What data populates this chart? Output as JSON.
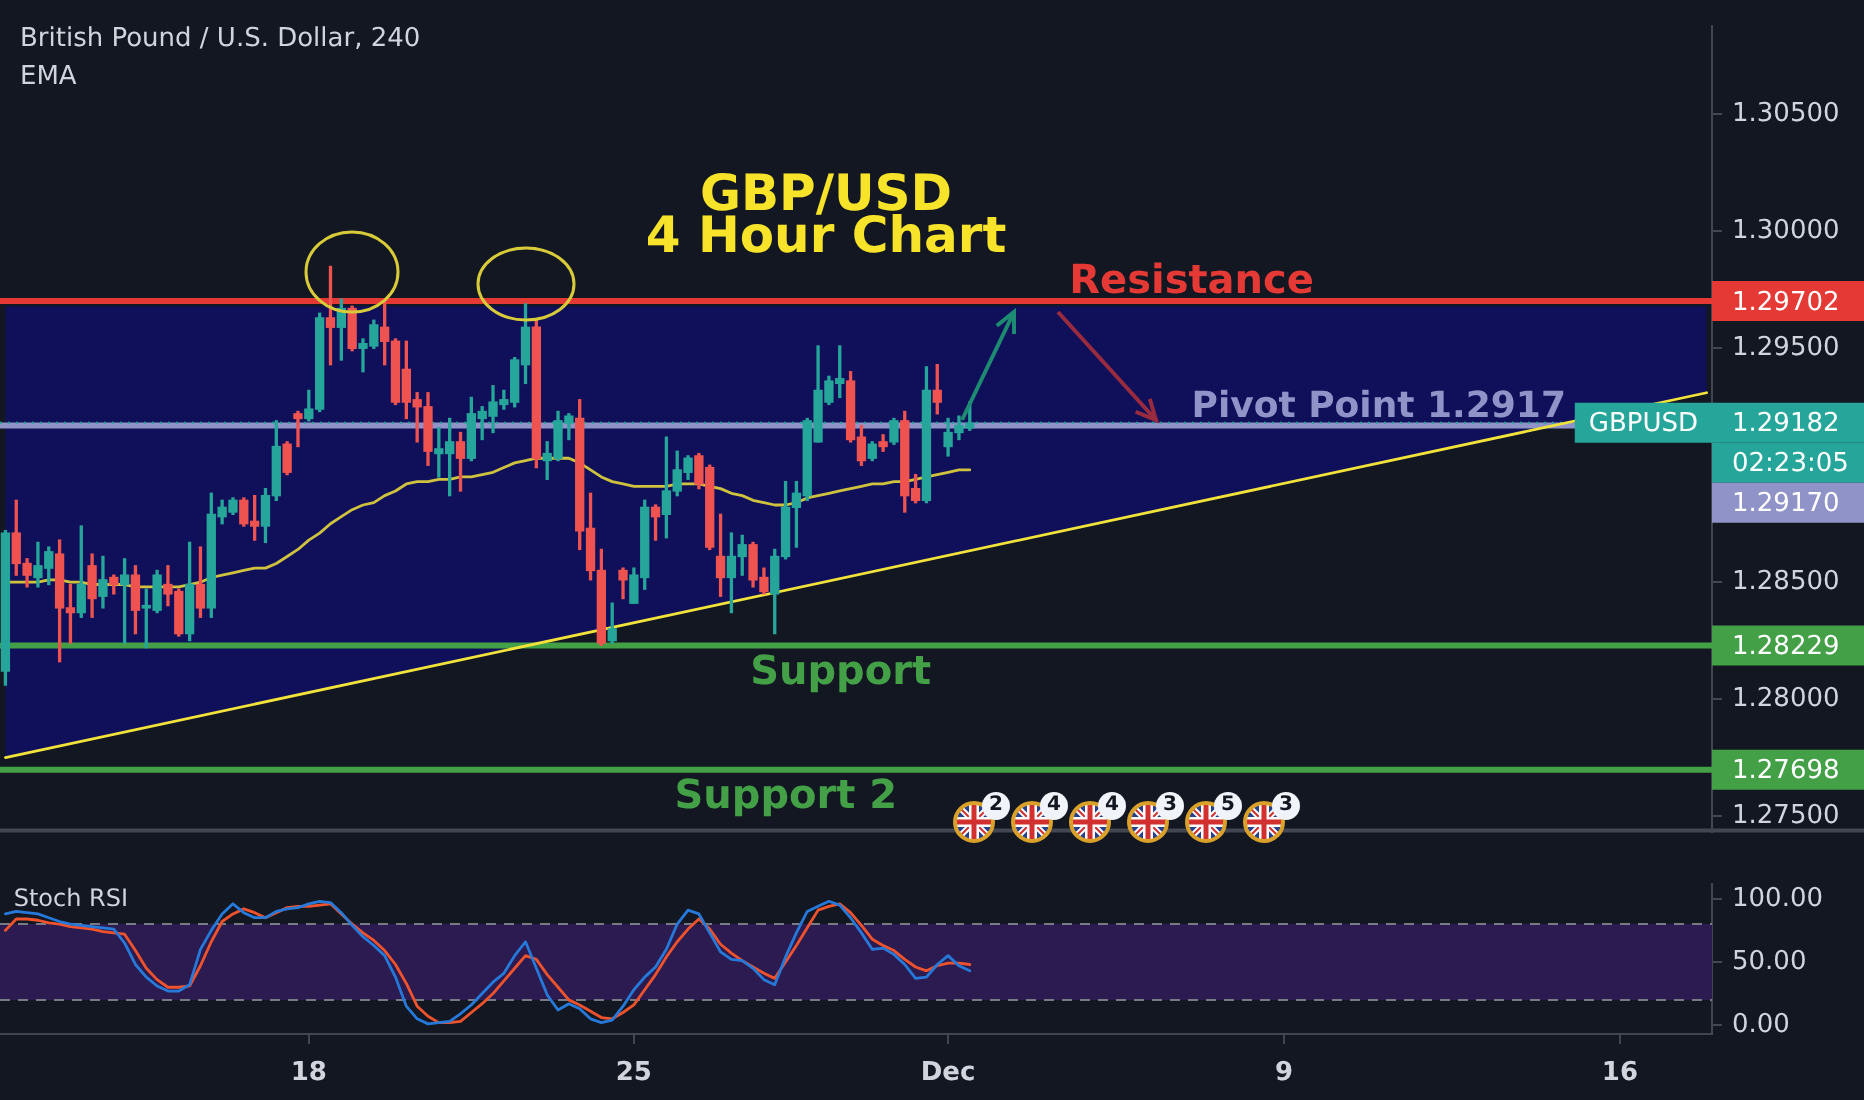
{
  "chart_data": [
    {
      "type": "candlestick",
      "title": "GBP/USD",
      "subtitle": "4 Hour Chart",
      "categories": [
        null,
        null,
        null,
        null,
        null,
        null,
        null,
        null,
        null,
        null,
        null,
        null,
        null,
        null,
        null,
        null,
        null,
        null,
        null,
        null,
        null,
        null,
        null,
        null,
        null,
        null,
        null,
        null,
        null,
        null,
        null,
        null,
        null,
        null,
        null,
        null,
        null,
        null,
        null,
        null,
        null,
        null,
        null,
        null,
        null,
        null,
        null,
        null,
        null,
        null,
        null,
        null,
        null,
        null,
        null,
        null,
        null,
        null,
        null,
        null,
        null,
        null,
        null,
        null,
        null,
        null,
        null,
        null,
        null,
        null,
        null,
        null,
        null,
        null,
        null,
        null,
        null,
        null,
        null,
        null,
        null,
        null,
        null,
        null,
        null,
        null,
        null,
        null,
        null,
        null,
        null,
        null,
        null,
        null,
        null,
        null,
        null,
        null,
        null,
        null,
        null,
        null,
        null,
        null,
        null,
        null,
        null,
        null,
        null,
        null,
        null,
        null,
        null,
        null,
        null,
        null,
        null,
        null,
        null,
        null,
        null,
        null,
        null,
        null,
        null,
        null,
        null,
        null,
        null,
        null,
        null,
        null,
        null,
        null,
        null,
        null,
        null,
        null,
        null,
        null,
        null,
        null,
        null,
        null,
        null,
        null,
        null,
        null,
        null,
        null,
        null,
        null,
        null,
        null,
        null,
        null,
        null,
        null
      ],
      "ohlc": [
        [
          1.2812,
          1.2872,
          1.2806,
          1.2871
        ],
        [
          1.2871,
          1.2885,
          1.2853,
          1.2858
        ],
        [
          1.2858,
          1.286,
          1.2848,
          1.2853
        ],
        [
          1.2852,
          1.2867,
          1.2848,
          1.2857
        ],
        [
          1.2856,
          1.2865,
          1.2849,
          1.2863
        ],
        [
          1.2862,
          1.2868,
          1.2816,
          1.2839
        ],
        [
          1.2839,
          1.2849,
          1.2824,
          1.2837
        ],
        [
          1.2837,
          1.2874,
          1.2835,
          1.2849
        ],
        [
          1.2857,
          1.2862,
          1.2835,
          1.2843
        ],
        [
          1.2844,
          1.2861,
          1.2839,
          1.2851
        ],
        [
          1.2852,
          1.2853,
          1.2845,
          1.2849
        ],
        [
          1.2849,
          1.286,
          1.2824,
          1.2853
        ],
        [
          1.2853,
          1.2857,
          1.2828,
          1.2838
        ],
        [
          1.2839,
          1.2847,
          1.2822,
          1.284
        ],
        [
          1.2838,
          1.2855,
          1.2837,
          1.2853
        ],
        [
          1.2849,
          1.2857,
          1.284,
          1.2845
        ],
        [
          1.2846,
          1.2847,
          1.2827,
          1.2828
        ],
        [
          1.2828,
          1.2867,
          1.2825,
          1.2849
        ],
        [
          1.2849,
          1.2865,
          1.2835,
          1.2839
        ],
        [
          1.2839,
          1.2888,
          1.2835,
          1.2879
        ],
        [
          1.2878,
          1.2885,
          1.2875,
          1.2882
        ],
        [
          1.288,
          1.2886,
          1.2879,
          1.2885
        ],
        [
          1.2885,
          1.2886,
          1.2874,
          1.2875
        ],
        [
          1.2876,
          1.2887,
          1.2868,
          1.2874
        ],
        [
          1.2874,
          1.289,
          1.2867,
          1.2887
        ],
        [
          1.2887,
          1.2919,
          1.2885,
          1.2908
        ],
        [
          1.2909,
          1.291,
          1.2896,
          1.2897
        ],
        [
          1.2922,
          1.2923,
          1.2908,
          1.292
        ],
        [
          1.292,
          1.2932,
          1.2919,
          1.2924
        ],
        [
          1.2924,
          1.2965,
          1.2923,
          1.2963
        ],
        [
          1.2963,
          1.2985,
          1.2943,
          1.2959
        ],
        [
          1.2959,
          1.2971,
          1.2945,
          1.2967
        ],
        [
          1.2967,
          1.2968,
          1.2949,
          1.295
        ],
        [
          1.295,
          1.2954,
          1.294,
          1.2952
        ],
        [
          1.2951,
          1.2962,
          1.295,
          1.296
        ],
        [
          1.2959,
          1.297,
          1.2943,
          1.2953
        ],
        [
          1.2953,
          1.2954,
          1.2926,
          1.2927
        ],
        [
          1.2941,
          1.2953,
          1.292,
          1.2927
        ],
        [
          1.2928,
          1.2931,
          1.291,
          1.2925
        ],
        [
          1.2925,
          1.2931,
          1.29,
          1.2906
        ],
        [
          1.2905,
          1.2916,
          1.2895,
          1.2907
        ],
        [
          1.2905,
          1.292,
          1.2887,
          1.291
        ],
        [
          1.291,
          1.2914,
          1.2889,
          1.2903
        ],
        [
          1.2903,
          1.2929,
          1.2902,
          1.2922
        ],
        [
          1.292,
          1.2925,
          1.2911,
          1.2923
        ],
        [
          1.2921,
          1.2934,
          1.2914,
          1.2927
        ],
        [
          1.2926,
          1.2932,
          1.2924,
          1.2928
        ],
        [
          1.2927,
          1.2946,
          1.2925,
          1.2945
        ],
        [
          1.2943,
          1.2969,
          1.2935,
          1.2959
        ],
        [
          1.2959,
          1.2962,
          1.2899,
          1.2903
        ],
        [
          1.2902,
          1.291,
          1.2894,
          1.2905
        ],
        [
          1.2903,
          1.2923,
          1.2902,
          1.2919
        ],
        [
          1.2918,
          1.2922,
          1.2911,
          1.2921
        ],
        [
          1.292,
          1.2928,
          1.2864,
          1.2872
        ],
        [
          1.2873,
          1.2888,
          1.2851,
          1.2855
        ],
        [
          1.2855,
          1.2864,
          1.2823,
          1.2824
        ],
        [
          1.2825,
          1.2841,
          1.2824,
          1.283
        ],
        [
          1.2855,
          1.2856,
          1.2843,
          1.2851
        ],
        [
          1.2841,
          1.2856,
          1.2841,
          1.2853
        ],
        [
          1.2852,
          1.2885,
          1.2847,
          1.2882
        ],
        [
          1.2882,
          1.2883,
          1.2868,
          1.2878
        ],
        [
          1.2879,
          1.2912,
          1.2869,
          1.2889
        ],
        [
          1.2889,
          1.2906,
          1.2887,
          1.2898
        ],
        [
          1.2897,
          1.2904,
          1.2894,
          1.2903
        ],
        [
          1.2904,
          1.2905,
          1.289,
          1.2892
        ],
        [
          1.2899,
          1.29,
          1.2864,
          1.2865
        ],
        [
          1.2861,
          1.2879,
          1.2844,
          1.2852
        ],
        [
          1.2852,
          1.2871,
          1.2837,
          1.2861
        ],
        [
          1.2861,
          1.287,
          1.2853,
          1.2866
        ],
        [
          1.2866,
          1.2867,
          1.2848,
          1.2851
        ],
        [
          1.2852,
          1.2856,
          1.2845,
          1.2846
        ],
        [
          1.2845,
          1.2864,
          1.2828,
          1.2861
        ],
        [
          1.2861,
          1.2893,
          1.286,
          1.2882
        ],
        [
          1.2882,
          1.2893,
          1.2865,
          1.2888
        ],
        [
          1.2887,
          1.292,
          1.2885,
          1.2919
        ],
        [
          1.291,
          1.2951,
          1.291,
          1.2932
        ],
        [
          1.2927,
          1.2938,
          1.2926,
          1.2936
        ],
        [
          1.2935,
          1.2951,
          1.2929,
          1.2937
        ],
        [
          1.2936,
          1.294,
          1.291,
          1.2911
        ],
        [
          1.2912,
          1.2917,
          1.29,
          1.2902
        ],
        [
          1.2903,
          1.291,
          1.2902,
          1.2909
        ],
        [
          1.291,
          1.2913,
          1.2906,
          1.2908
        ],
        [
          1.291,
          1.292,
          1.2909,
          1.2919
        ],
        [
          1.2919,
          1.2923,
          1.288,
          1.2887
        ],
        [
          1.289,
          1.2896,
          1.2884,
          1.2885
        ],
        [
          1.2885,
          1.2942,
          1.2884,
          1.2932
        ],
        [
          1.2932,
          1.2943,
          1.2922,
          1.2927
        ],
        [
          1.2908,
          1.292,
          1.2904,
          1.2914
        ],
        [
          1.2914,
          1.2921,
          1.2911,
          1.2917
        ],
        [
          1.2916,
          1.2927,
          1.2915,
          1.2918
        ],
        null,
        null,
        null,
        null,
        null,
        null,
        null,
        null,
        null,
        null,
        null,
        null,
        null,
        null,
        null,
        null,
        null,
        null,
        null,
        null,
        null,
        null,
        null,
        null,
        null,
        null,
        null,
        null,
        null,
        null,
        null,
        null,
        null,
        null,
        null,
        null,
        null,
        null,
        null,
        null,
        null,
        null,
        null,
        null,
        null,
        null,
        null,
        null,
        null,
        null,
        null,
        null,
        null,
        null,
        null,
        null,
        null,
        null,
        null,
        null,
        null,
        null,
        null,
        null,
        null,
        null,
        null,
        null
      ],
      "colors": [
        "#26a69a",
        "#ef5350",
        "#ef5350",
        "#26a69a",
        "#26a69a",
        "#ef5350",
        "#ef5350",
        "#26a69a",
        "#ef5350",
        "#26a69a",
        "#ef5350",
        "#26a69a",
        "#ef5350",
        "#26a69a",
        "#26a69a",
        "#ef5350",
        "#ef5350",
        "#26a69a",
        "#ef5350",
        "#26a69a",
        "#26a69a",
        "#26a69a",
        "#ef5350",
        "#ef5350",
        "#26a69a",
        "#26a69a",
        "#ef5350",
        "#ef5350",
        "#26a69a",
        "#26a69a",
        "#ef5350",
        "#26a69a",
        "#ef5350",
        "#26a69a",
        "#26a69a",
        "#ef5350",
        "#ef5350",
        "#ef5350",
        "#ef5350",
        "#ef5350",
        "#26a69a",
        "#26a69a",
        "#ef5350",
        "#26a69a",
        "#26a69a",
        "#26a69a",
        "#26a69a",
        "#26a69a",
        "#26a69a",
        "#ef5350",
        "#26a69a",
        "#26a69a",
        "#26a69a",
        "#ef5350",
        "#ef5350",
        "#ef5350",
        "#26a69a",
        "#ef5350",
        "#26a69a",
        "#26a69a",
        "#ef5350",
        "#26a69a",
        "#26a69a",
        "#26a69a",
        "#ef5350",
        "#ef5350",
        "#ef5350",
        "#26a69a",
        "#26a69a",
        "#ef5350",
        "#ef5350",
        "#26a69a",
        "#26a69a",
        "#26a69a",
        "#26a69a",
        "#26a69a",
        "#26a69a",
        "#26a69a",
        "#ef5350",
        "#ef5350",
        "#26a69a",
        "#ef5350",
        "#26a69a",
        "#ef5350",
        "#ef5350",
        "#26a69a",
        "#ef5350",
        "#26a69a",
        "#26a69a",
        "#26a69a",
        null,
        null,
        null,
        null,
        null,
        null,
        null,
        null,
        null,
        null,
        null,
        null,
        null,
        null,
        null,
        null,
        null,
        null,
        null,
        null,
        null,
        null,
        null,
        null,
        null,
        null,
        null,
        null,
        null,
        null,
        null,
        null,
        null,
        null,
        null,
        null,
        null,
        null,
        null,
        null,
        null,
        null,
        null,
        null,
        null,
        null,
        null,
        null,
        null,
        null,
        null,
        null,
        null,
        null,
        null,
        null,
        null,
        null,
        null,
        null,
        null,
        null,
        null,
        null,
        null,
        null,
        null,
        null
      ],
      "series": [
        {
          "type": "line",
          "color": "#cfc23f",
          "values": [
            1.285,
            1.285,
            1.285,
            1.285,
            1.2851,
            1.2851,
            1.285,
            1.285,
            1.2849,
            1.2849,
            1.2849,
            1.2849,
            1.2848,
            1.2848,
            1.2848,
            1.2848,
            1.2848,
            1.2849,
            1.285,
            1.2852,
            1.2853,
            1.2854,
            1.2855,
            1.2856,
            1.2856,
            1.2858,
            1.2861,
            1.2864,
            1.2868,
            1.2871,
            1.2875,
            1.2878,
            1.2881,
            1.2883,
            1.2884,
            1.2887,
            1.2889,
            1.2892,
            1.2893,
            1.2893,
            1.2894,
            1.2894,
            1.2895,
            1.2895,
            1.2896,
            1.2897,
            1.2899,
            1.2901,
            1.2902,
            1.2903,
            1.2903,
            1.2903,
            1.2903,
            1.2901,
            1.2898,
            1.2895,
            1.2893,
            1.2892,
            1.2891,
            1.2891,
            1.2891,
            1.2891,
            1.2892,
            1.2892,
            1.2892,
            1.2891,
            1.289,
            1.2888,
            1.2887,
            1.2885,
            1.2884,
            1.2883,
            1.2883,
            1.2884,
            1.2886,
            1.2887,
            1.2888,
            1.2889,
            1.289,
            1.2891,
            1.2892,
            1.2892,
            1.2893,
            1.2893,
            1.2894,
            1.2895,
            1.2896,
            1.2897,
            1.2898,
            1.2898,
            null,
            null,
            null,
            null,
            null,
            null,
            null,
            null,
            null,
            null,
            null,
            null,
            null,
            null,
            null,
            null,
            null,
            null,
            null,
            null,
            null,
            null,
            null,
            null,
            null,
            null,
            null,
            null,
            null,
            null,
            null,
            null,
            null,
            null,
            null,
            null,
            null,
            null,
            null,
            null,
            null,
            null,
            null,
            null,
            null,
            null,
            null,
            null,
            null,
            null,
            null,
            null,
            null,
            null,
            null,
            null,
            null,
            null,
            null,
            null,
            null,
            null,
            null,
            null,
            null,
            null,
            null,
            null
          ]
        },
        {
          "type": "line",
          "color": "#f2e33b",
          "values": [
            1.2775,
            null,
            null,
            null,
            null,
            null,
            null,
            null,
            null,
            null,
            null,
            null,
            null,
            null,
            null,
            null,
            null,
            null,
            null,
            null,
            null,
            null,
            null,
            null,
            null,
            null,
            null,
            null,
            null,
            null,
            null,
            null,
            null,
            null,
            null,
            null,
            null,
            null,
            null,
            null,
            null,
            null,
            null,
            null,
            null,
            null,
            null,
            null,
            null,
            null,
            null,
            null,
            null,
            null,
            null,
            null,
            null,
            null,
            null,
            null,
            null,
            null,
            null,
            null,
            null,
            null,
            null,
            null,
            null,
            null,
            null,
            null,
            null,
            null,
            null,
            null,
            null,
            null,
            null,
            null,
            null,
            null,
            null,
            null,
            null,
            null,
            null,
            null,
            null,
            null,
            null,
            null,
            null,
            null,
            null,
            null,
            null,
            null,
            null,
            null,
            null,
            null,
            null,
            null,
            null,
            null,
            null,
            null,
            null,
            null,
            null,
            null,
            null,
            null,
            null,
            null,
            null,
            null,
            null,
            null,
            null,
            null,
            null,
            null,
            null,
            null,
            null,
            null,
            null,
            null,
            null,
            null,
            null,
            null,
            null,
            null,
            null,
            null,
            null,
            null,
            null,
            null,
            null,
            null,
            null,
            null,
            null,
            null,
            null,
            null,
            null,
            null,
            null,
            null,
            null,
            null,
            null,
            1.2931
          ],
          "lower": [
            1.2775,
            null,
            null,
            null,
            null,
            null,
            null,
            null,
            null,
            null,
            null,
            null,
            null,
            null,
            null,
            null,
            null,
            null,
            null,
            null,
            null,
            null,
            null,
            null,
            null,
            null,
            null,
            null,
            null,
            null,
            null,
            null,
            null,
            null,
            null,
            null,
            null,
            null,
            null,
            null,
            null,
            null,
            null,
            null,
            null,
            null,
            null,
            null,
            null,
            null,
            null,
            null,
            null,
            null,
            null,
            null,
            null,
            null,
            null,
            null,
            null,
            null,
            null,
            null,
            null,
            null,
            null,
            null,
            null,
            null,
            null,
            null,
            null,
            null,
            null,
            null,
            null,
            null,
            null,
            null,
            null,
            null,
            null,
            null,
            null,
            null,
            null,
            null,
            null,
            null,
            null,
            null,
            null,
            null,
            null,
            null,
            null,
            null,
            null,
            null,
            null,
            null,
            null,
            null,
            null,
            null,
            null,
            null,
            null,
            null,
            null,
            null,
            null,
            null,
            null,
            null,
            null,
            null,
            null,
            null,
            null,
            null,
            null,
            null,
            null,
            null,
            null,
            null,
            null,
            null,
            null,
            null,
            null,
            null,
            null,
            null,
            null,
            null,
            null,
            null,
            null,
            null,
            null,
            null,
            null,
            null,
            null,
            null,
            null,
            null,
            null,
            null,
            null,
            null,
            null,
            null,
            null,
            1.2931
          ],
          "upper": [
            1.2968,
            null,
            null,
            null,
            null,
            null,
            null,
            null,
            null,
            null,
            null,
            null,
            null,
            null,
            null,
            null,
            null,
            null,
            null,
            null,
            null,
            null,
            null,
            null,
            null,
            null,
            null,
            null,
            null,
            null,
            null,
            null,
            null,
            null,
            null,
            null,
            null,
            null,
            null,
            null,
            null,
            null,
            null,
            null,
            null,
            null,
            null,
            null,
            null,
            null,
            null,
            null,
            null,
            null,
            null,
            null,
            null,
            null,
            null,
            null,
            null,
            null,
            null,
            null,
            null,
            null,
            null,
            null,
            null,
            null,
            null,
            null,
            null,
            null,
            null,
            null,
            null,
            null,
            null,
            null,
            null,
            null,
            null,
            null,
            null,
            null,
            null,
            null,
            null,
            null,
            null,
            null,
            null,
            null,
            null,
            null,
            null,
            null,
            null,
            null,
            null,
            null,
            null,
            null,
            null,
            null,
            null,
            null,
            null,
            null,
            null,
            null,
            null,
            null,
            null,
            null,
            null,
            null,
            null,
            null,
            null,
            null,
            null,
            null,
            null,
            null,
            null,
            null,
            null,
            null,
            null,
            null,
            null,
            null,
            null,
            null,
            null,
            null,
            null,
            null,
            null,
            null,
            null,
            null,
            null,
            null,
            null,
            null,
            null,
            null,
            null,
            null,
            null,
            null,
            null,
            null,
            null,
            1.2968
          ]
        }
      ],
      "ylim": [
        1.2743,
        1.3088
      ],
      "yticks": [
        {
          "value": 1.275,
          "label": "1.27500"
        },
        {
          "value": 1.27698,
          "label": "1.27698"
        },
        {
          "value": 1.28,
          "label": "1.28000"
        },
        {
          "value": 1.28229,
          "label": "1.28229"
        },
        {
          "value": 1.285,
          "label": "1.28500"
        },
        {
          "value": 1.29182,
          "label": "1.29182"
        },
        {
          "value": 1.295,
          "label": "1.29500"
        },
        {
          "value": 1.29702,
          "label": "1.29702"
        },
        {
          "value": 1.3,
          "label": "1.30000"
        },
        {
          "value": 1.305,
          "label": "1.30500"
        }
      ],
      "tick_labels": "y",
      "ref_lines": [
        {
          "axis": "y",
          "value": 1.29702,
          "label": "Resistance",
          "color": "#e53935"
        },
        {
          "axis": "y",
          "value": 1.29182,
          "label": "GBPUSD",
          "color": "#26a69a",
          "line_style": "dotted"
        },
        {
          "axis": "y",
          "value": 1.2917,
          "label": "Pivot Point 1.2917",
          "color": "#8f93c8"
        },
        {
          "axis": "y",
          "value": 1.28229,
          "label": "Support",
          "color": "#43a047"
        },
        {
          "axis": "y",
          "value": 1.27698,
          "label": "Support 2",
          "color": "#43a047"
        }
      ],
      "annotations": [
        "British Pound / U.S. Dollar, 240",
        "EMA",
        "02:23:05",
        "1.29170",
        "2",
        "4",
        "4",
        "3",
        "5",
        "3"
      ]
    },
    {
      "type": "line",
      "title": "Stoch RSI",
      "categories": [
        null,
        null,
        null,
        null,
        null,
        null,
        null,
        null,
        null,
        null,
        null,
        null,
        null,
        null,
        null,
        null,
        null,
        null,
        null,
        null,
        null,
        null,
        null,
        null,
        null,
        null,
        null,
        null,
        "18",
        null,
        null,
        null,
        null,
        null,
        null,
        null,
        null,
        null,
        null,
        null,
        null,
        null,
        null,
        null,
        null,
        null,
        null,
        null,
        null,
        null,
        null,
        null,
        null,
        null,
        null,
        null,
        null,
        null,
        "25",
        null,
        null,
        null,
        null,
        null,
        null,
        null,
        null,
        null,
        null,
        null,
        null,
        null,
        null,
        null,
        null,
        null,
        null,
        null,
        null,
        null,
        null,
        null,
        null,
        null,
        null,
        null,
        null,
        "Dec",
        null,
        null,
        null,
        null,
        null,
        null,
        null,
        null,
        null,
        null,
        null,
        null,
        null,
        null,
        null,
        null,
        null,
        null,
        null,
        null,
        null,
        null,
        null,
        null,
        null,
        null,
        null,
        null,
        null,
        null,
        "9",
        null,
        null,
        null,
        null,
        null,
        null,
        null,
        null,
        null,
        null,
        null,
        null,
        null,
        null,
        null,
        null,
        null,
        null,
        null,
        null,
        null,
        null,
        null,
        null,
        null,
        null,
        null,
        null,
        null,
        null,
        "16",
        null,
        null,
        null,
        null,
        null,
        null,
        null,
        null
      ],
      "series": [
        {
          "color": "#2679d8",
          "values": [
            88,
            90,
            89,
            88,
            85,
            82,
            80,
            79,
            78,
            77,
            76,
            65,
            48,
            38,
            31,
            27,
            27,
            32,
            60,
            75,
            88,
            96,
            89,
            85,
            85,
            90,
            92,
            93,
            96,
            98,
            97,
            89,
            79,
            70,
            63,
            55,
            38,
            15,
            5,
            1,
            2,
            3,
            9,
            16,
            25,
            34,
            41,
            55,
            66,
            45,
            24,
            12,
            17,
            13,
            5,
            2,
            4,
            15,
            28,
            38,
            46,
            60,
            80,
            91,
            88,
            73,
            58,
            52,
            51,
            45,
            36,
            32,
            54,
            73,
            90,
            94,
            98,
            95,
            85,
            73,
            60,
            61,
            56,
            48,
            37,
            38,
            48,
            55,
            47,
            43,
            null,
            null,
            null,
            null,
            null,
            null,
            null,
            null,
            null,
            null,
            null,
            null,
            null,
            null,
            null,
            null,
            null,
            null,
            null,
            null,
            null,
            null,
            null,
            null,
            null,
            null,
            null,
            null,
            null,
            null,
            null,
            null,
            null,
            null,
            null,
            null,
            null,
            null,
            null,
            null,
            null,
            null,
            null,
            null,
            null,
            null,
            null,
            null,
            null,
            null,
            null,
            null,
            null,
            null,
            null,
            null,
            null,
            null,
            null,
            null,
            null,
            null,
            null,
            null,
            null,
            null,
            null,
            null
          ]
        },
        {
          "color": "#f0532c",
          "values": [
            75,
            84,
            84,
            83,
            81,
            80,
            78,
            77,
            76,
            74,
            73,
            72,
            59,
            45,
            36,
            30,
            30,
            31,
            47,
            66,
            82,
            88,
            92,
            89,
            85,
            89,
            93,
            94,
            94,
            95,
            96,
            88,
            80,
            73,
            67,
            59,
            48,
            33,
            15,
            7,
            2,
            2,
            3,
            10,
            17,
            25,
            35,
            45,
            55,
            52,
            40,
            30,
            20,
            16,
            11,
            6,
            5,
            10,
            16,
            28,
            40,
            54,
            66,
            76,
            84,
            76,
            64,
            57,
            51,
            46,
            41,
            37,
            50,
            63,
            77,
            91,
            94,
            96,
            89,
            79,
            68,
            63,
            59,
            52,
            46,
            43,
            47,
            49,
            49,
            48,
            null,
            null,
            null,
            null,
            null,
            null,
            null,
            null,
            null,
            null,
            null,
            null,
            null,
            null,
            null,
            null,
            null,
            null,
            null,
            null,
            null,
            null,
            null,
            null,
            null,
            null,
            null,
            null,
            null,
            null,
            null,
            null,
            null,
            null,
            null,
            null,
            null,
            null,
            null,
            null,
            null,
            null,
            null,
            null,
            null,
            null,
            null,
            null,
            null,
            null,
            null,
            null,
            null,
            null,
            null,
            null,
            null,
            null,
            null,
            null,
            null,
            null,
            null,
            null,
            null,
            null,
            null,
            null
          ]
        }
      ],
      "ylim": [
        -7,
        112
      ],
      "yticks": [
        {
          "value": 0,
          "label": "0.00"
        },
        {
          "value": 50,
          "label": "50.00"
        },
        {
          "value": 100,
          "label": "100.00"
        }
      ],
      "bands": [
        {
          "axis": "y",
          "from": 20,
          "to": 80,
          "color": "#2b1b50"
        }
      ],
      "ref_lines": [
        {
          "axis": "y",
          "value": 80,
          "color": "#787b86",
          "line_style": "dashed"
        },
        {
          "axis": "y",
          "value": 20,
          "color": "#787b86",
          "line_style": "dashed"
        }
      ]
    }
  ]
}
